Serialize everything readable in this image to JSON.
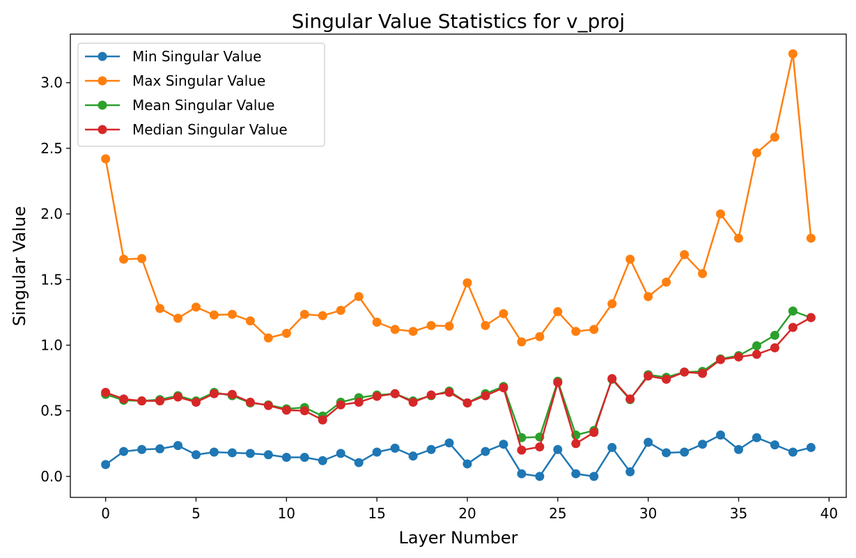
{
  "chart_data": {
    "type": "line",
    "title": "Singular Value Statistics for v_proj",
    "xlabel": "Layer Number",
    "ylabel": "Singular Value",
    "xlim": [
      -1.95,
      40.95
    ],
    "ylim": [
      -0.16,
      3.37
    ],
    "x_ticks": [
      0,
      5,
      10,
      15,
      20,
      25,
      30,
      35,
      40
    ],
    "x_tick_labels": [
      "0",
      "5",
      "10",
      "15",
      "20",
      "25",
      "30",
      "35",
      "40"
    ],
    "y_ticks": [
      0.0,
      0.5,
      1.0,
      1.5,
      2.0,
      2.5,
      3.0
    ],
    "y_tick_labels": [
      "0.0",
      "0.5",
      "1.0",
      "1.5",
      "2.0",
      "2.5",
      "3.0"
    ],
    "grid": false,
    "legend_position": "upper-left",
    "x": [
      0,
      1,
      2,
      3,
      4,
      5,
      6,
      7,
      8,
      9,
      10,
      11,
      12,
      13,
      14,
      15,
      16,
      17,
      18,
      19,
      20,
      21,
      22,
      23,
      24,
      25,
      26,
      27,
      28,
      29,
      30,
      31,
      32,
      33,
      34,
      35,
      36,
      37,
      38,
      39
    ],
    "series": [
      {
        "name": "Min Singular Value",
        "color": "#1f77b4",
        "values": [
          0.09,
          0.19,
          0.205,
          0.21,
          0.235,
          0.165,
          0.185,
          0.18,
          0.175,
          0.165,
          0.145,
          0.145,
          0.12,
          0.175,
          0.105,
          0.185,
          0.215,
          0.155,
          0.205,
          0.255,
          0.095,
          0.19,
          0.245,
          0.02,
          0.0,
          0.205,
          0.02,
          0.0,
          0.22,
          0.035,
          0.26,
          0.18,
          0.185,
          0.245,
          0.315,
          0.205,
          0.295,
          0.24,
          0.185,
          0.22
        ]
      },
      {
        "name": "Max Singular Value",
        "color": "#ff7f0e",
        "values": [
          2.42,
          1.655,
          1.66,
          1.28,
          1.205,
          1.29,
          1.23,
          1.235,
          1.185,
          1.055,
          1.09,
          1.235,
          1.225,
          1.265,
          1.37,
          1.175,
          1.12,
          1.105,
          1.15,
          1.145,
          1.475,
          1.15,
          1.24,
          1.025,
          1.065,
          1.255,
          1.105,
          1.12,
          1.315,
          1.655,
          1.37,
          1.48,
          1.69,
          1.545,
          2.0,
          1.815,
          2.465,
          2.585,
          3.22,
          1.815
        ]
      },
      {
        "name": "Mean Singular Value",
        "color": "#2ca02c",
        "values": [
          0.625,
          0.58,
          0.575,
          0.585,
          0.615,
          0.575,
          0.64,
          0.615,
          0.56,
          0.545,
          0.515,
          0.525,
          0.46,
          0.565,
          0.6,
          0.62,
          0.63,
          0.575,
          0.615,
          0.65,
          0.56,
          0.63,
          0.685,
          0.295,
          0.3,
          0.725,
          0.315,
          0.35,
          0.74,
          0.585,
          0.775,
          0.755,
          0.795,
          0.8,
          0.895,
          0.92,
          0.995,
          1.075,
          1.26,
          1.21
        ]
      },
      {
        "name": "Median Singular Value",
        "color": "#d62728",
        "values": [
          0.64,
          0.59,
          0.575,
          0.575,
          0.605,
          0.565,
          0.63,
          0.625,
          0.565,
          0.54,
          0.505,
          0.5,
          0.43,
          0.545,
          0.565,
          0.61,
          0.63,
          0.565,
          0.62,
          0.64,
          0.56,
          0.615,
          0.675,
          0.2,
          0.225,
          0.715,
          0.25,
          0.335,
          0.745,
          0.59,
          0.765,
          0.74,
          0.795,
          0.785,
          0.89,
          0.91,
          0.93,
          0.98,
          1.135,
          1.21
        ]
      }
    ]
  }
}
